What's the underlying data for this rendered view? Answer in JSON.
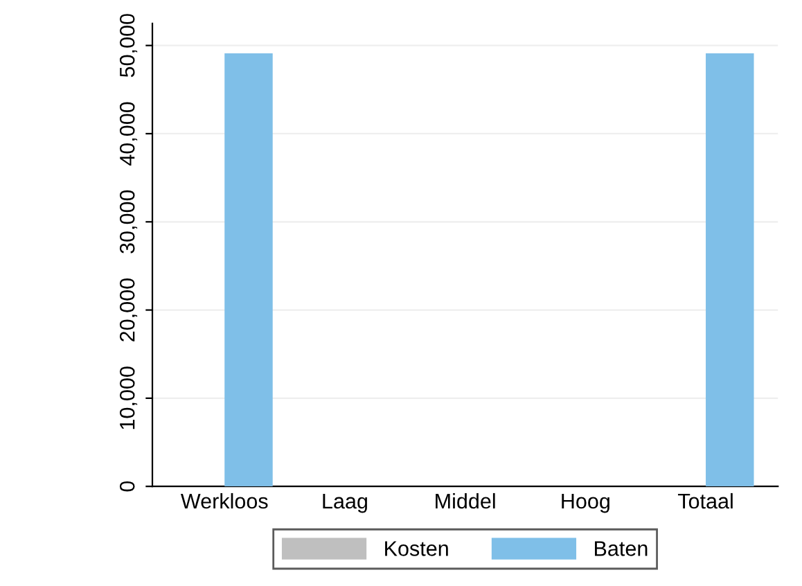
{
  "chart_data": {
    "type": "bar",
    "categories": [
      "Werkloos",
      "Laag",
      "Middel",
      "Hoog",
      "Totaal"
    ],
    "series": [
      {
        "name": "Kosten",
        "color": "#bfbfbf",
        "values": [
          0,
          0,
          0,
          0,
          0
        ]
      },
      {
        "name": "Baten",
        "color": "#7fbfe8",
        "values": [
          49100,
          0,
          0,
          0,
          49100
        ]
      }
    ],
    "ylim": [
      0,
      52500
    ],
    "yticks": [
      {
        "value": 0,
        "label": "0"
      },
      {
        "value": 10000,
        "label": "10,000"
      },
      {
        "value": 20000,
        "label": "20,000"
      },
      {
        "value": 30000,
        "label": "30,000"
      },
      {
        "value": 40000,
        "label": "40,000"
      },
      {
        "value": 50000,
        "label": "50,000"
      }
    ],
    "grid": "y",
    "legend": "bottom"
  }
}
